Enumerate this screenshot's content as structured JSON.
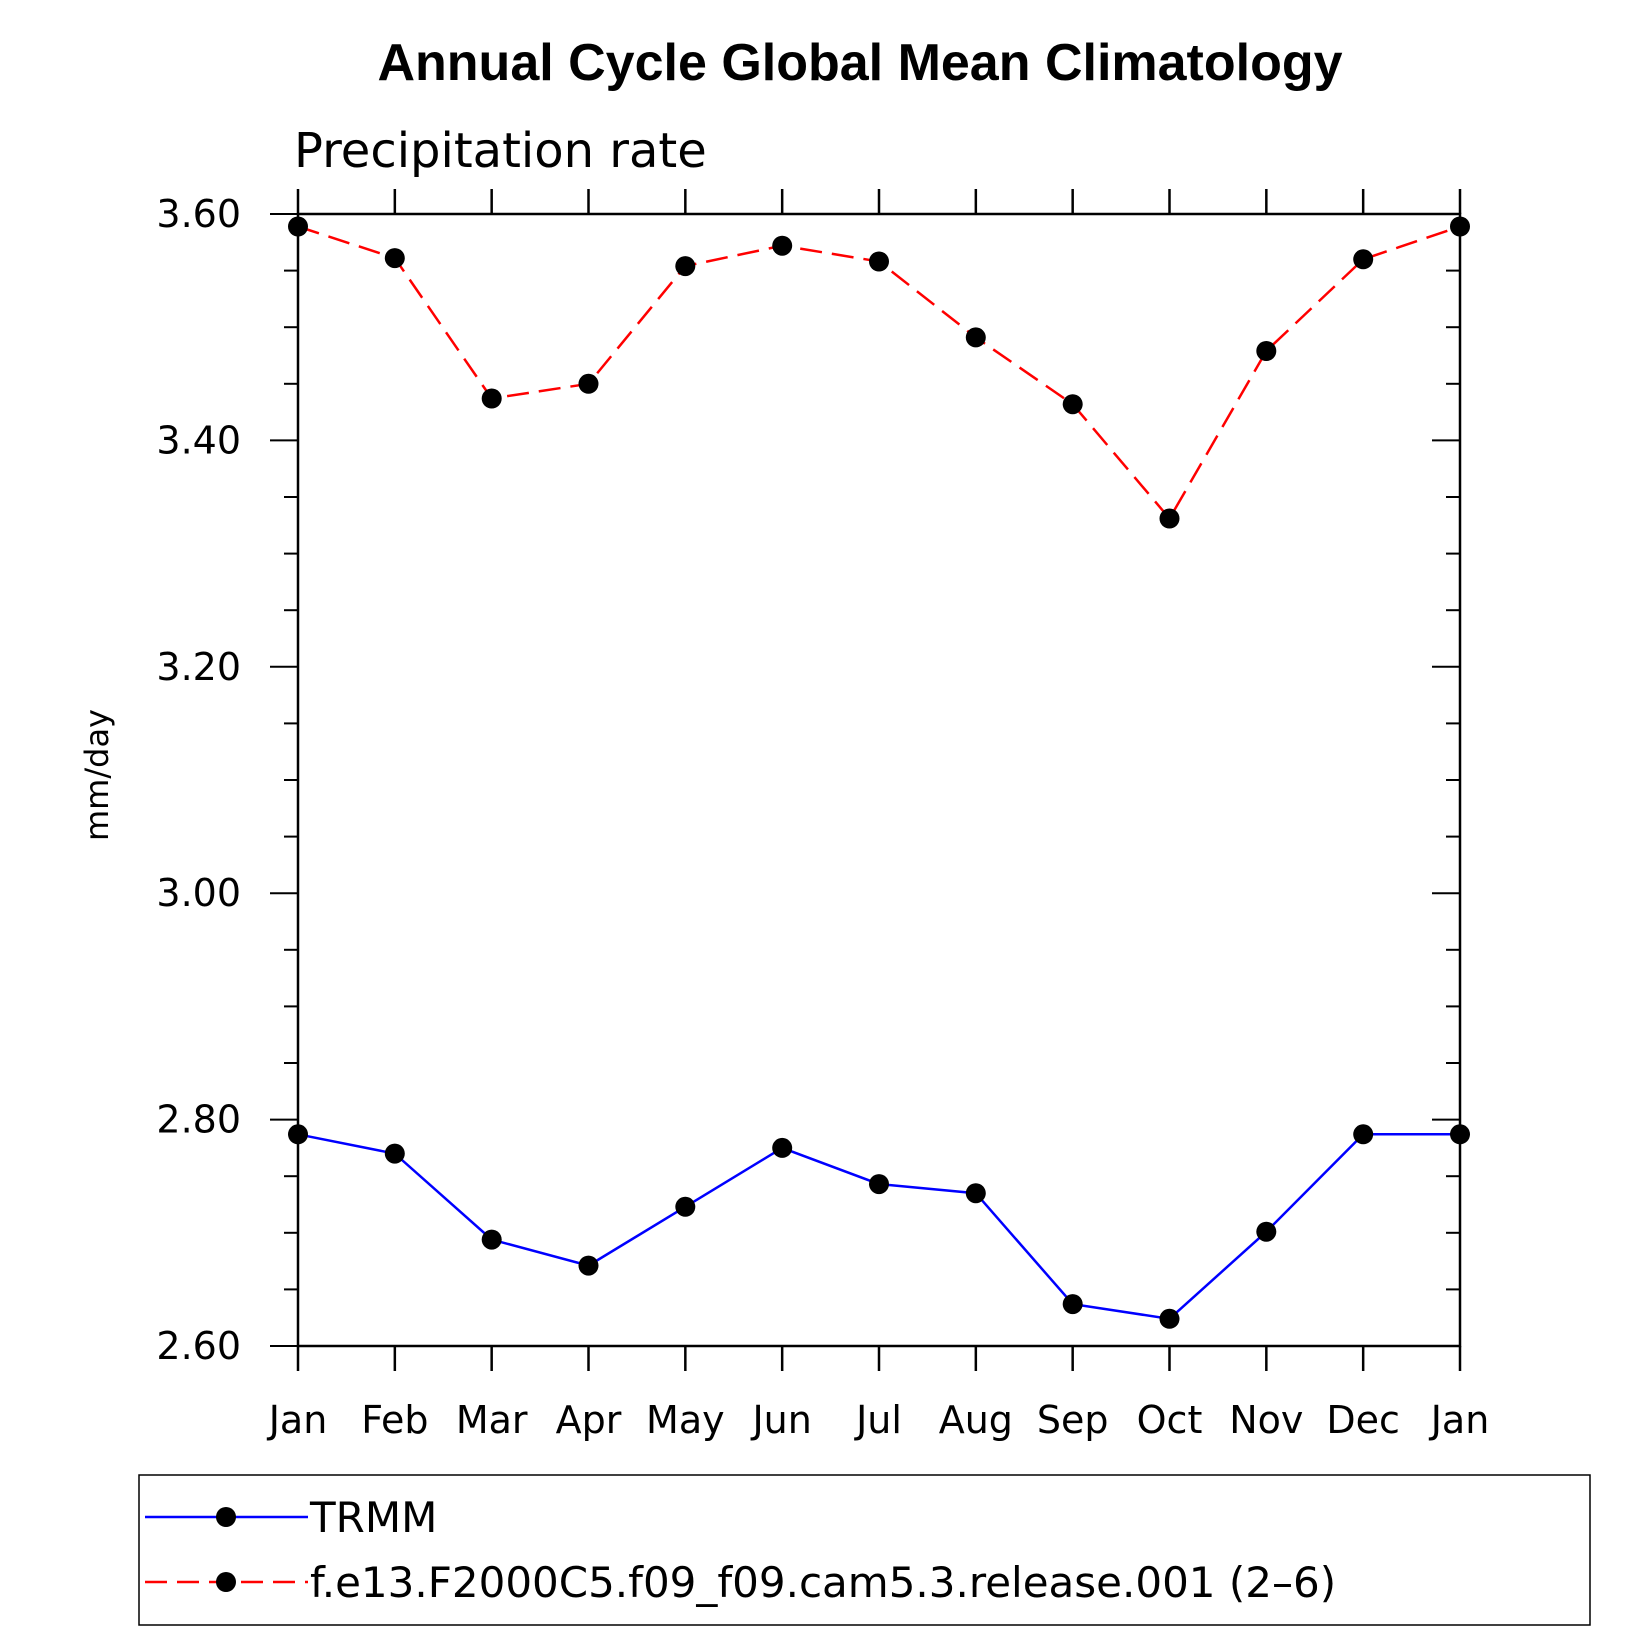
{
  "chart_data": {
    "type": "line",
    "title": "Annual Cycle Global Mean Climatology",
    "subtitle": "Precipitation rate",
    "ylabel": "mm/day",
    "xlabel": "",
    "categories": [
      "Jan",
      "Feb",
      "Mar",
      "Apr",
      "May",
      "Jun",
      "Jul",
      "Aug",
      "Sep",
      "Oct",
      "Nov",
      "Dec",
      "Jan"
    ],
    "ylim": [
      2.6,
      3.6
    ],
    "yticks": [
      "2.60",
      "2.80",
      "3.00",
      "3.20",
      "3.40",
      "3.60"
    ],
    "grid": false,
    "legend_position": "bottom",
    "series": [
      {
        "name": "TRMM",
        "color": "#0000ff",
        "dash": "solid",
        "marker": "circle",
        "values": [
          2.787,
          2.77,
          2.694,
          2.671,
          2.723,
          2.775,
          2.743,
          2.735,
          2.637,
          2.624,
          2.701,
          2.787,
          2.787
        ]
      },
      {
        "name": "f.e13.F2000C5.f09_f09.cam5.3.release.001 (2–6)",
        "color": "#ff0000",
        "dash": "dashed",
        "marker": "circle",
        "values": [
          3.589,
          3.561,
          3.437,
          3.45,
          3.554,
          3.572,
          3.558,
          3.491,
          3.432,
          3.331,
          3.479,
          3.56,
          3.589
        ]
      }
    ]
  }
}
